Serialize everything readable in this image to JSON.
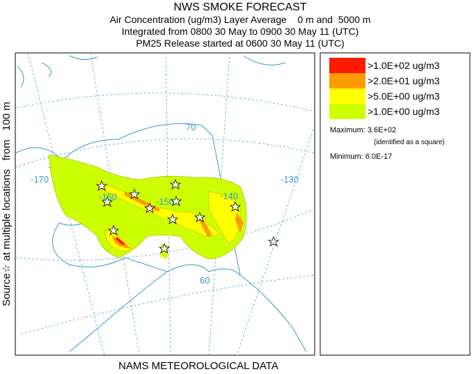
{
  "header": {
    "title": "NWS SMOKE FORECAST",
    "lines": [
      "Air Concentration (ug/m3) Layer Average    0 m and  5000 m",
      "Integrated from 0800 30 May to 0900 30 May 11 (UTC)",
      "PM25 Release started at 0600 30 May 11 (UTC)"
    ]
  },
  "side_label": "Source☆ at multiple locations   from   100 m",
  "footer": "NAMS METEOROLOGICAL DATA",
  "legend": {
    "items": [
      {
        "label": ">1.0E+02 ug/m3",
        "color": "#ff1a00"
      },
      {
        "label": ">2.0E+01 ug/m3",
        "color": "#ff9900"
      },
      {
        "label": ">5.0E+00 ug/m3",
        "color": "#ffff00"
      },
      {
        "label": ">1.0E+00 ug/m3",
        "color": "#ccff00"
      }
    ],
    "maximum": "Maximum: 3.6E+02",
    "maximum_note": "(identified as a square)",
    "minimum": "Minimum: 6.0E-17"
  },
  "map_labels": {
    "lon_170": "-170",
    "lon_160": "-160",
    "lon_150": "-150",
    "lon_140": "-140",
    "lon_130": "-130",
    "lat_70": "70",
    "lat_60": "60"
  }
}
